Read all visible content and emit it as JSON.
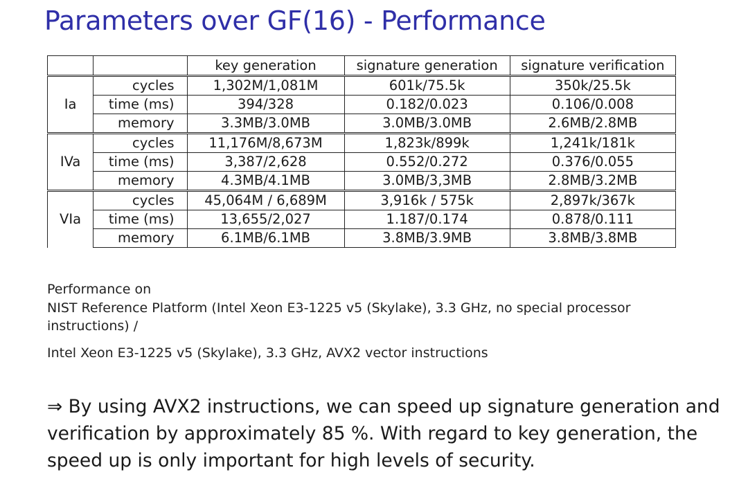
{
  "title": "Parameters over GF(16) - Performance",
  "table": {
    "headers": [
      "",
      "",
      "key generation",
      "signature generation",
      "signature verification"
    ],
    "groups": [
      {
        "level": "Ia",
        "rows": [
          {
            "metric": "cycles",
            "key": "1,302M/1,081M",
            "sig": "601k/75.5k",
            "ver": "350k/25.5k"
          },
          {
            "metric": "time (ms)",
            "key": "394/328",
            "sig": "0.182/0.023",
            "ver": "0.106/0.008"
          },
          {
            "metric": "memory",
            "key": "3.3MB/3.0MB",
            "sig": "3.0MB/3.0MB",
            "ver": "2.6MB/2.8MB"
          }
        ]
      },
      {
        "level": "IVa",
        "rows": [
          {
            "metric": "cycles",
            "key": "11,176M/8,673M",
            "sig": "1,823k/899k",
            "ver": "1,241k/181k"
          },
          {
            "metric": "time (ms)",
            "key": "3,387/2,628",
            "sig": "0.552/0.272",
            "ver": "0.376/0.055"
          },
          {
            "metric": "memory",
            "key": "4.3MB/4.1MB",
            "sig": "3.0MB/3,3MB",
            "ver": "2.8MB/3.2MB"
          }
        ]
      },
      {
        "level": "VIa",
        "rows": [
          {
            "metric": "cycles",
            "key": "45,064M / 6,689M",
            "sig": "3,916k / 575k",
            "ver": "2,897k/367k"
          },
          {
            "metric": "time (ms)",
            "key": "13,655/2,027",
            "sig": "1.187/0.174",
            "ver": "0.878/0.111"
          },
          {
            "metric": "memory",
            "key": "6.1MB/6.1MB",
            "sig": "3.8MB/3.9MB",
            "ver": "3.8MB/3.8MB"
          }
        ]
      }
    ]
  },
  "notes": {
    "line1": "Performance on",
    "line2": "NIST Reference Platform (Intel Xeon E3-1225 v5 (Skylake), 3.3 GHz, no special processor instructions) /",
    "line3": "Intel Xeon E3-1225 v5 (Skylake), 3.3 GHz, AVX2 vector instructions"
  },
  "conclusion": "⇒ By using AVX2 instructions, we can speed up signature generation and verification by approximately 85 %. With regard to key generation, the speed up is only important for high levels of security."
}
